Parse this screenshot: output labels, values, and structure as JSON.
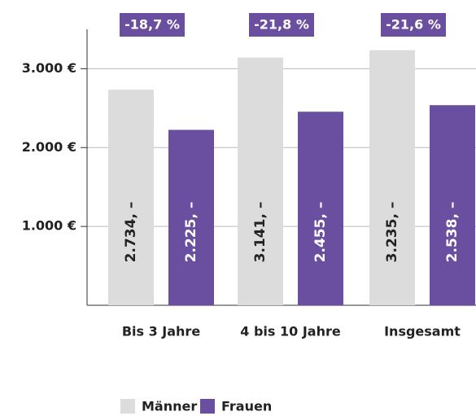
{
  "chart_data": {
    "type": "bar",
    "categories": [
      "Bis 3 Jahre",
      "4 bis 10 Jahre",
      "Insgesamt"
    ],
    "series": [
      {
        "name": "Männer",
        "color": "#dcdcdc",
        "values": [
          2734,
          3141,
          3235
        ],
        "value_labels": [
          "2.734, –",
          "3.141, –",
          "3.235, –"
        ]
      },
      {
        "name": "Frauen",
        "color": "#6a4fa0",
        "values": [
          2225,
          2455,
          2538
        ],
        "value_labels": [
          "2.225, –",
          "2.455, –",
          "2.538, –"
        ]
      }
    ],
    "annotations": [
      "-18,7 %",
      "-21,8 %",
      "-21,6 %"
    ],
    "ylim": [
      0,
      3500
    ],
    "yticks": [
      {
        "value": 1000,
        "label": "1.000 €"
      },
      {
        "value": 2000,
        "label": "2.000 €"
      },
      {
        "value": 3000,
        "label": "3.000 €"
      }
    ],
    "grid": true,
    "legend": "bottom"
  }
}
